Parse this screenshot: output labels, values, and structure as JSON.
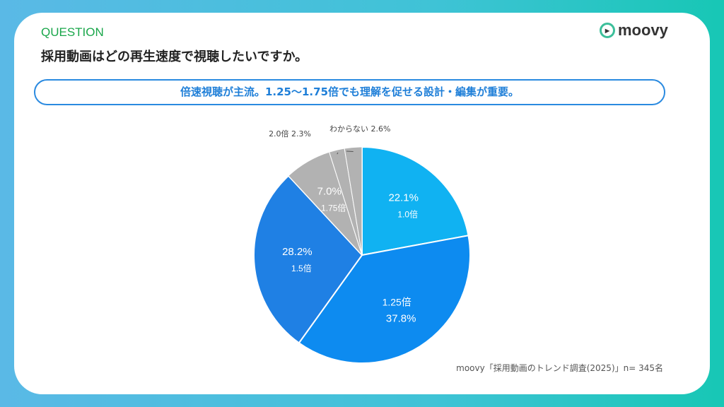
{
  "header": {
    "label": "QUESTION",
    "question": "採用動画はどの再生速度で視聴したいですか。",
    "logo": "moovy"
  },
  "banner": "倍速視聴が主流。1.25〜1.75倍でも理解を促せる設計・編集が重要。",
  "source": "moovy「採用動画のトレンド調査(2025)」n= 345名",
  "chart_data": {
    "type": "pie",
    "start": "top",
    "direction": "clockwise",
    "slices": [
      {
        "label": "1.0倍",
        "value": 22.1,
        "pct": "22.1%",
        "color": "#10b2f2",
        "inside": true
      },
      {
        "label": "1.25倍",
        "value": 37.8,
        "pct": "37.8%",
        "color": "#0d8bf0",
        "inside": true
      },
      {
        "label": "1.5倍",
        "value": 28.2,
        "pct": "28.2%",
        "color": "#1f80e4",
        "inside": true
      },
      {
        "label": "1.75倍",
        "value": 7.0,
        "pct": "7.0%",
        "color": "#b2b2b2",
        "inside": true
      },
      {
        "label": "2.0倍",
        "value": 2.3,
        "pct": "2.3%",
        "color": "#b2b2b2",
        "inside": false
      },
      {
        "label": "わからない",
        "value": 2.6,
        "pct": "2.6%",
        "color": "#b2b2b2",
        "inside": false
      }
    ]
  }
}
